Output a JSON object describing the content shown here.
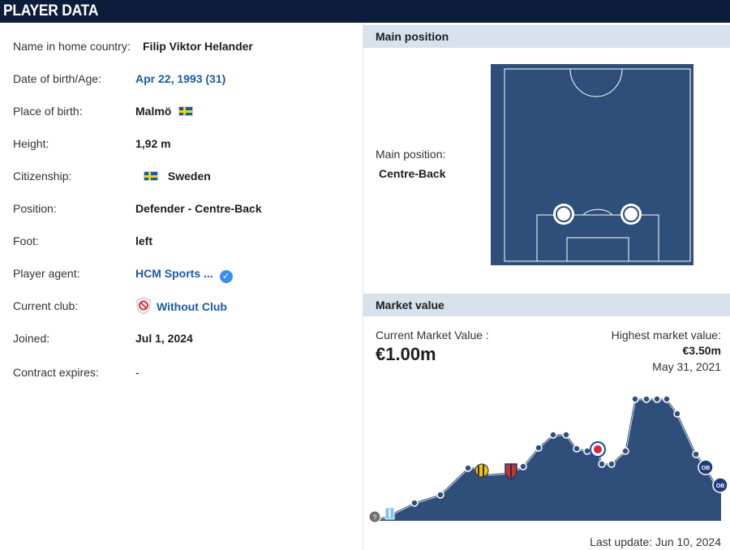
{
  "header": {
    "title": "PLAYER DATA"
  },
  "player": {
    "rows": [
      {
        "label": "Name in home country:",
        "value": "Filip Viktor Helander"
      },
      {
        "label": "Date of birth/Age:",
        "value": "Apr 22, 1993 (31)"
      },
      {
        "label": "Place of birth:",
        "value": "Malmö"
      },
      {
        "label": "Height:",
        "value": "1,92 m"
      },
      {
        "label": "Citizenship:",
        "value": "Sweden"
      },
      {
        "label": "Position:",
        "value": "Defender - Centre-Back"
      },
      {
        "label": "Foot:",
        "value": "left"
      },
      {
        "label": "Player agent:",
        "value": "HCM Sports ..."
      },
      {
        "label": "Current club:",
        "value": "Without Club"
      },
      {
        "label": "Joined:",
        "value": "Jul 1, 2024"
      },
      {
        "label": "Contract expires:",
        "value": "-"
      }
    ]
  },
  "main_position": {
    "heading": "Main position",
    "label": "Main position:",
    "value": "Centre-Back"
  },
  "market_value": {
    "heading": "Market value",
    "current_label": "Current Market Value :",
    "current_value": "€1.00m",
    "highest_label": "Highest market value:",
    "highest_value": "€3.50m",
    "highest_date": "May 31, 2021",
    "last_update": "Last update: Jun 10, 2024"
  },
  "colors": {
    "header_bg": "#0e1c3c",
    "section_bg": "#d7e2ec",
    "link": "#1a5aa6",
    "pitch": "#2f4f7a",
    "chart_fill": "#2f4f7a",
    "verified": "#3a8ef0"
  },
  "icons": [
    "sweden-flag-icon",
    "verified-icon",
    "no-club-icon",
    "club-logo-icon"
  ]
}
